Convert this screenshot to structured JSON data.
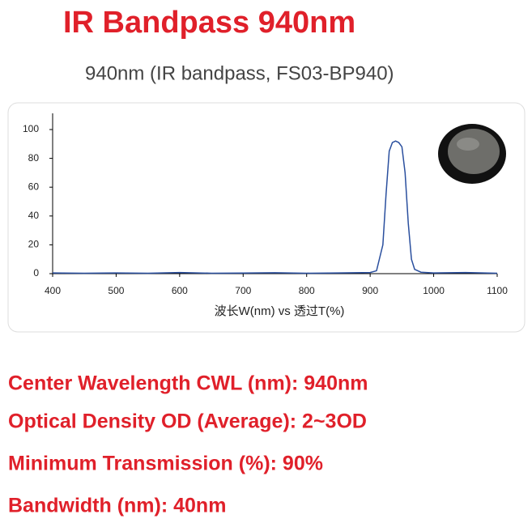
{
  "header": {
    "title": "IR Bandpass 940nm",
    "subtitle": "940nm (IR bandpass, FS03-BP940)"
  },
  "chart_data": {
    "type": "line",
    "x_label": "波长W(nm) vs 透过T(%)",
    "x": [
      400,
      450,
      500,
      550,
      600,
      650,
      700,
      750,
      800,
      850,
      900,
      910,
      920,
      925,
      930,
      935,
      940,
      945,
      950,
      955,
      960,
      965,
      970,
      980,
      1000,
      1050,
      1100
    ],
    "series": [
      {
        "color": "#2a4f9e",
        "values": [
          0.5,
          0.3,
          0.5,
          0.3,
          0.8,
          0.3,
          0.4,
          0.6,
          0.3,
          0.5,
          0.8,
          2,
          20,
          55,
          85,
          91,
          92,
          91,
          88,
          70,
          35,
          10,
          3,
          1,
          0.5,
          0.8,
          0.3
        ]
      }
    ],
    "xlim": [
      400,
      1100
    ],
    "ylim": [
      0,
      100
    ],
    "xticks": [
      400,
      500,
      600,
      700,
      800,
      900,
      1000,
      1100
    ],
    "yticks": [
      0,
      20,
      40,
      60,
      80,
      100
    ]
  },
  "specs": [
    "Center Wavelength CWL (nm): 940nm",
    "Optical Density OD (Average): 2~3OD",
    "Minimum Transmission (%): 90%",
    "Bandwidth (nm): 40nm"
  ]
}
